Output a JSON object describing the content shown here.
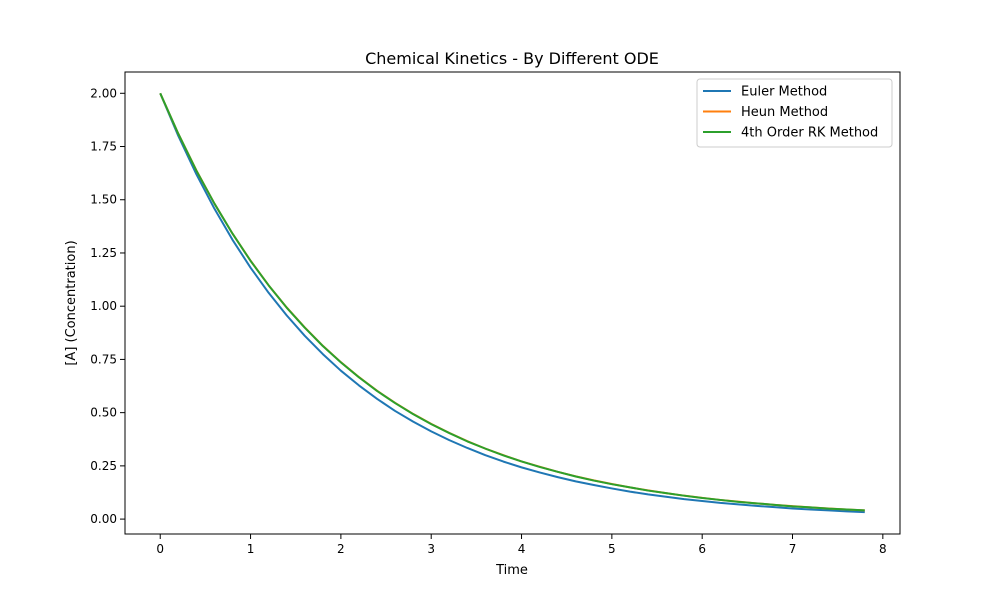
{
  "chart_data": {
    "type": "line",
    "title": "Chemical Kinetics - By Different ODE",
    "xlabel": "Time",
    "ylabel": "[A] (Concentration)",
    "xlim": [
      -0.39,
      8.19
    ],
    "ylim": [
      -0.07,
      2.1
    ],
    "xticks": [
      0,
      1,
      2,
      3,
      4,
      5,
      6,
      7,
      8
    ],
    "xtick_labels": [
      "0",
      "1",
      "2",
      "3",
      "4",
      "5",
      "6",
      "7",
      "8"
    ],
    "yticks": [
      0.0,
      0.25,
      0.5,
      0.75,
      1.0,
      1.25,
      1.5,
      1.75,
      2.0
    ],
    "ytick_labels": [
      "0.00",
      "0.25",
      "0.50",
      "0.75",
      "1.00",
      "1.25",
      "1.50",
      "1.75",
      "2.00"
    ],
    "grid": false,
    "legend_position": "top-right",
    "x": [
      0.0,
      0.2,
      0.4,
      0.6,
      0.8,
      1.0,
      1.2,
      1.4,
      1.6,
      1.8,
      2.0,
      2.2,
      2.4,
      2.6,
      2.8,
      3.0,
      3.2,
      3.4,
      3.6,
      3.8,
      4.0,
      4.2,
      4.4,
      4.6,
      4.8,
      5.0,
      5.2,
      5.4,
      5.6,
      5.8,
      6.0,
      6.2,
      6.4,
      6.6,
      6.8,
      7.0,
      7.2,
      7.4,
      7.6,
      7.8
    ],
    "series": [
      {
        "name": "Euler Method",
        "color": "#1f77b4",
        "values": [
          2.0,
          1.8,
          1.62,
          1.458,
          1.312,
          1.181,
          1.063,
          0.957,
          0.861,
          0.775,
          0.697,
          0.628,
          0.565,
          0.508,
          0.458,
          0.412,
          0.371,
          0.334,
          0.3,
          0.27,
          0.243,
          0.219,
          0.197,
          0.177,
          0.16,
          0.144,
          0.129,
          0.116,
          0.105,
          0.094,
          0.085,
          0.076,
          0.069,
          0.062,
          0.056,
          0.05,
          0.045,
          0.041,
          0.036,
          0.033
        ]
      },
      {
        "name": "Heun Method",
        "color": "#ff7f0e",
        "values": [
          2.0,
          1.81,
          1.638,
          1.482,
          1.341,
          1.214,
          1.098,
          0.994,
          0.9,
          0.814,
          0.737,
          0.667,
          0.603,
          0.546,
          0.494,
          0.447,
          0.405,
          0.366,
          0.331,
          0.3,
          0.271,
          0.246,
          0.222,
          0.201,
          0.182,
          0.165,
          0.149,
          0.135,
          0.122,
          0.11,
          0.1,
          0.09,
          0.082,
          0.074,
          0.067,
          0.061,
          0.055,
          0.05,
          0.045,
          0.041
        ]
      },
      {
        "name": "4th Order RK Method",
        "color": "#2ca02c",
        "values": [
          2.0,
          1.81,
          1.637,
          1.482,
          1.341,
          1.213,
          1.098,
          0.993,
          0.899,
          0.813,
          0.736,
          0.666,
          0.602,
          0.545,
          0.493,
          0.446,
          0.404,
          0.365,
          0.331,
          0.299,
          0.271,
          0.245,
          0.222,
          0.2,
          0.181,
          0.164,
          0.149,
          0.134,
          0.122,
          0.11,
          0.099,
          0.09,
          0.081,
          0.074,
          0.067,
          0.06,
          0.055,
          0.049,
          0.045,
          0.041
        ]
      }
    ]
  }
}
